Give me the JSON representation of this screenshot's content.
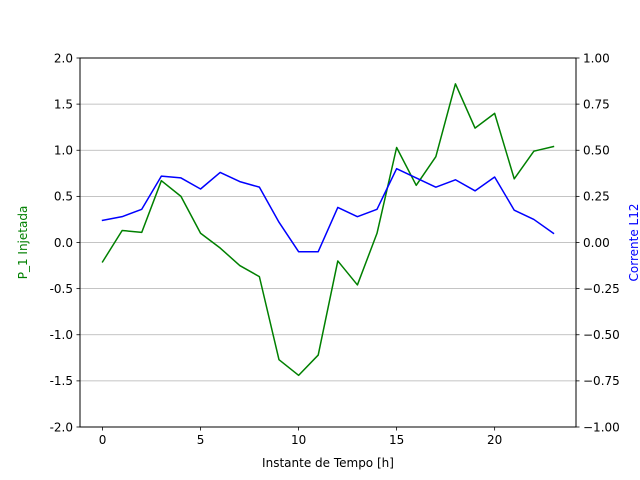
{
  "chart_data": {
    "type": "line",
    "x": [
      0,
      1,
      2,
      3,
      4,
      5,
      6,
      7,
      8,
      9,
      10,
      11,
      12,
      13,
      14,
      15,
      16,
      17,
      18,
      19,
      20,
      21,
      22,
      23
    ],
    "xlabel": "Instante de Tempo [h]",
    "xlim": [
      -1.15,
      24.15
    ],
    "xticks": [
      0,
      5,
      10,
      15,
      20
    ],
    "grid": "horizontal",
    "series": [
      {
        "name": "P_1 Injetada",
        "axis": "left",
        "color": "#008000",
        "values": [
          -0.21,
          0.13,
          0.11,
          0.67,
          0.5,
          0.1,
          -0.06,
          -0.25,
          -0.37,
          -1.27,
          -1.44,
          -1.22,
          -0.2,
          -0.46,
          0.1,
          1.03,
          0.62,
          0.93,
          1.72,
          1.24,
          1.4,
          0.69,
          0.99,
          1.04
        ]
      },
      {
        "name": "Corrente L12",
        "axis": "right",
        "color": "#0000ff",
        "values": [
          0.12,
          0.14,
          0.18,
          0.36,
          0.35,
          0.29,
          0.38,
          0.33,
          0.3,
          0.11,
          -0.05,
          -0.05,
          0.19,
          0.14,
          0.18,
          0.4,
          0.35,
          0.3,
          0.34,
          0.28,
          0.355,
          0.175,
          0.125,
          0.05
        ]
      }
    ],
    "y_left": {
      "label": "P_1 Injetada",
      "label_color": "#008000",
      "ylim": [
        -2.0,
        2.0
      ],
      "ticks": [
        "-2.0",
        "-1.5",
        "-1.0",
        "-0.5",
        "0.0",
        "0.5",
        "1.0",
        "1.5",
        "2.0"
      ]
    },
    "y_right": {
      "label": "Corrente L12",
      "label_color": "#0000ff",
      "ylim": [
        -1.0,
        1.0
      ],
      "ticks": [
        "−1.00",
        "−0.75",
        "−0.50",
        "−0.25",
        "0.00",
        "0.25",
        "0.50",
        "0.75",
        "1.00"
      ]
    }
  }
}
